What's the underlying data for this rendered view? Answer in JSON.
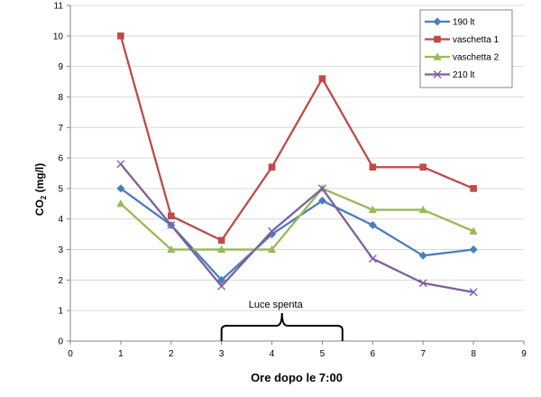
{
  "chart_data": {
    "type": "line",
    "title": "",
    "xlabel": "Ore dopo le 7:00",
    "ylabel_main": "CO",
    "ylabel_sub": "2",
    "ylabel_unit": " (mg/l)",
    "xlim": [
      0,
      9
    ],
    "ylim": [
      0,
      11
    ],
    "xticks": [
      0,
      1,
      2,
      3,
      4,
      5,
      6,
      7,
      8,
      9
    ],
    "yticks": [
      0,
      1,
      2,
      3,
      4,
      5,
      6,
      7,
      8,
      9,
      10,
      11
    ],
    "grid": "horizontal",
    "legend_position": "top-right",
    "x": [
      1,
      2,
      3,
      4,
      5,
      6,
      7,
      8
    ],
    "series": [
      {
        "name": "190 lt",
        "color": "#4a7ebb",
        "marker": "diamond",
        "values": [
          5.0,
          3.8,
          2.0,
          3.5,
          4.6,
          3.8,
          2.8,
          3.0
        ]
      },
      {
        "name": "vaschetta 1",
        "color": "#be4b48",
        "marker": "square",
        "values": [
          10.0,
          4.1,
          3.3,
          5.7,
          8.6,
          5.7,
          5.7,
          5.0
        ]
      },
      {
        "name": "vaschetta 2",
        "color": "#98b954",
        "marker": "triangle",
        "values": [
          4.5,
          3.0,
          3.0,
          3.0,
          5.0,
          4.3,
          4.3,
          3.6
        ]
      },
      {
        "name": "210 lt",
        "color": "#7d60a0",
        "marker": "x",
        "values": [
          5.8,
          3.8,
          1.8,
          3.6,
          5.0,
          2.7,
          1.9,
          1.6
        ]
      }
    ],
    "annotation": {
      "text": "Luce spenta",
      "x_start": 3,
      "x_end": 5.4
    }
  }
}
